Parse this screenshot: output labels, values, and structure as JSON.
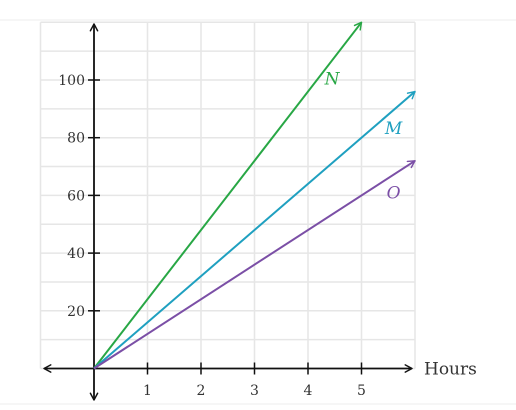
{
  "chart_data": {
    "type": "line",
    "xlabel": "Hours",
    "ylabel": "",
    "xlim": [
      -1,
      6
    ],
    "ylim": [
      0,
      120
    ],
    "x_ticks": [
      1,
      2,
      3,
      4,
      5
    ],
    "y_ticks": [
      20,
      40,
      60,
      80,
      100
    ],
    "grid": true,
    "series": [
      {
        "name": "N",
        "color": "#28a745",
        "x": [
          0,
          5
        ],
        "y": [
          0,
          120
        ]
      },
      {
        "name": "M",
        "color": "#1fa0c0",
        "x": [
          0,
          6
        ],
        "y": [
          0,
          96
        ]
      },
      {
        "name": "O",
        "color": "#7b4fa6",
        "x": [
          0,
          6
        ],
        "y": [
          0,
          72
        ]
      }
    ]
  }
}
